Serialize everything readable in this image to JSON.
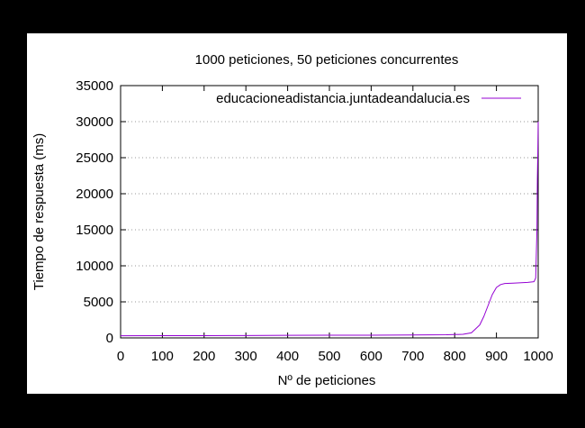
{
  "chart_data": {
    "type": "line",
    "title": "1000 peticiones, 50 peticiones concurrentes",
    "xlabel": "Nº de peticiones",
    "ylabel": "Tiempo de respuesta (ms)",
    "xlim": [
      0,
      1000
    ],
    "ylim": [
      0,
      35000
    ],
    "x_ticks": [
      0,
      100,
      200,
      300,
      400,
      500,
      600,
      700,
      800,
      900,
      1000
    ],
    "y_ticks": [
      0,
      5000,
      10000,
      15000,
      20000,
      25000,
      30000,
      35000
    ],
    "grid": "horizontal dotted",
    "legend_position": "top-right",
    "series": [
      {
        "name": "educacioneadistancia.juntadeandalucia.es",
        "color": "#9400d3",
        "points": [
          [
            0,
            300
          ],
          [
            100,
            310
          ],
          [
            200,
            320
          ],
          [
            300,
            330
          ],
          [
            350,
            350
          ],
          [
            400,
            360
          ],
          [
            500,
            370
          ],
          [
            600,
            380
          ],
          [
            700,
            400
          ],
          [
            780,
            430
          ],
          [
            820,
            500
          ],
          [
            840,
            700
          ],
          [
            860,
            1800
          ],
          [
            870,
            3000
          ],
          [
            880,
            4500
          ],
          [
            890,
            6000
          ],
          [
            900,
            7000
          ],
          [
            910,
            7400
          ],
          [
            920,
            7550
          ],
          [
            940,
            7600
          ],
          [
            960,
            7650
          ],
          [
            975,
            7700
          ],
          [
            990,
            7800
          ],
          [
            994,
            8300
          ],
          [
            997,
            15000
          ],
          [
            998,
            22000
          ],
          [
            999,
            25500
          ],
          [
            1000,
            30000
          ]
        ]
      }
    ]
  }
}
